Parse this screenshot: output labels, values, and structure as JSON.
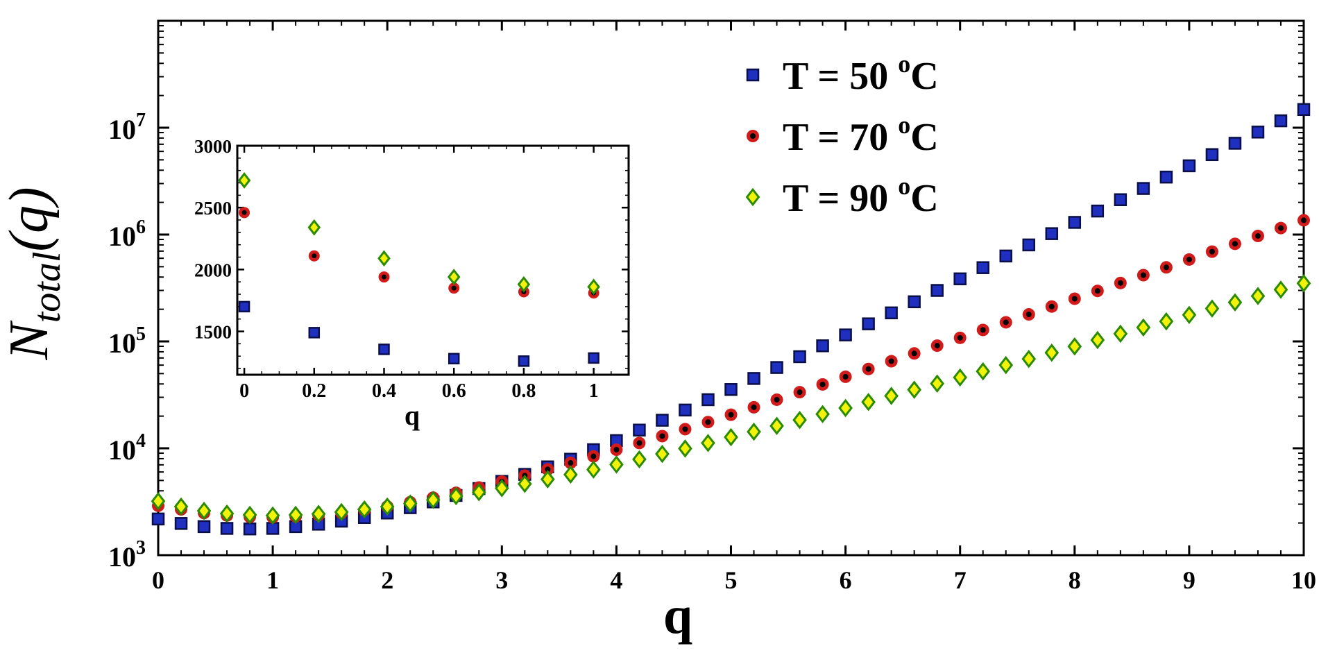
{
  "chart_data": [
    {
      "type": "scatter",
      "id": "main",
      "xlabel": "q",
      "ylabel_main": "N",
      "ylabel_sub": "total",
      "ylabel_tail": "(q)",
      "xlim": [
        0,
        10
      ],
      "ylim": [
        1000,
        100000000
      ],
      "yscale": "log",
      "xticks": [
        0,
        1,
        2,
        3,
        4,
        5,
        6,
        7,
        8,
        9,
        10
      ],
      "yticks": [
        {
          "value": 1000,
          "base": "10",
          "exp": "3"
        },
        {
          "value": 10000,
          "base": "10",
          "exp": "4"
        },
        {
          "value": 100000,
          "base": "10",
          "exp": "5"
        },
        {
          "value": 1000000,
          "base": "10",
          "exp": "6"
        },
        {
          "value": 10000000,
          "base": "10",
          "exp": "7"
        }
      ],
      "legend_position": "top-right",
      "x": [
        0,
        0.2,
        0.4,
        0.6,
        0.8,
        1.0,
        1.2,
        1.4,
        1.6,
        1.8,
        2.0,
        2.2,
        2.4,
        2.6,
        2.8,
        3.0,
        3.2,
        3.4,
        3.6,
        3.8,
        4.0,
        4.2,
        4.4,
        4.6,
        4.8,
        5.0,
        5.2,
        5.4,
        5.6,
        5.8,
        6.0,
        6.2,
        6.4,
        6.6,
        6.8,
        7.0,
        7.2,
        7.4,
        7.6,
        7.8,
        8.0,
        8.2,
        8.4,
        8.6,
        8.8,
        9.0,
        9.2,
        9.4,
        9.6,
        9.8,
        10.0
      ],
      "series": [
        {
          "name": "T = 50 °C",
          "legend_prefix": "T = 50 ",
          "legend_sup": "o",
          "legend_suffix": "C",
          "marker": "square",
          "color": "#1f2fbf",
          "edge": "#0a0f4a",
          "values": [
            2180,
            1980,
            1850,
            1780,
            1760,
            1780,
            1850,
            1950,
            2080,
            2250,
            2480,
            2780,
            3150,
            3620,
            4200,
            4900,
            5700,
            6700,
            7900,
            9700,
            11800,
            14800,
            18300,
            22800,
            28500,
            35500,
            45000,
            57000,
            72000,
            91000,
            115000,
            146000,
            185000,
            235000,
            300000,
            385000,
            490000,
            630000,
            800000,
            1020000,
            1300000,
            1660000,
            2120000,
            2700000,
            3450000,
            4400000,
            5600000,
            7150000,
            9100000,
            11600000,
            14800000
          ]
        },
        {
          "name": "T = 70 °C",
          "legend_prefix": "T = 70 ",
          "legend_sup": "o",
          "legend_suffix": "C",
          "marker": "circle",
          "color": "#d11a1a",
          "edge": "#000000",
          "values": [
            2900,
            2680,
            2480,
            2350,
            2280,
            2260,
            2300,
            2370,
            2480,
            2640,
            2850,
            3130,
            3450,
            3830,
            4300,
            4870,
            5550,
            6350,
            7300,
            8400,
            9700,
            11200,
            13000,
            15100,
            17600,
            20600,
            24200,
            28500,
            33500,
            39600,
            46700,
            55200,
            65300,
            77200,
            91300,
            108000,
            128000,
            151000,
            179000,
            212000,
            251000,
            297000,
            352000,
            417000,
            493000,
            584000,
            692000,
            819000,
            970000,
            1150000,
            1360000
          ]
        },
        {
          "name": "T = 90 °C",
          "legend_prefix": "T = 90 ",
          "legend_sup": "o",
          "legend_suffix": "C",
          "marker": "diamond",
          "color": "#f2f20a",
          "edge": "#2a8a00",
          "values": [
            3200,
            2850,
            2600,
            2450,
            2380,
            2350,
            2380,
            2430,
            2530,
            2680,
            2850,
            3040,
            3290,
            3570,
            3880,
            4230,
            4650,
            5130,
            5680,
            6320,
            7050,
            7880,
            8850,
            9950,
            11200,
            12700,
            14300,
            16200,
            18400,
            20900,
            23800,
            27100,
            30900,
            35300,
            40300,
            46000,
            52500,
            60000,
            68600,
            78400,
            89700,
            103000,
            118000,
            135000,
            154000,
            177000,
            203000,
            232000,
            266000,
            305000,
            350000
          ]
        }
      ]
    },
    {
      "type": "scatter",
      "id": "inset",
      "xlabel": "q",
      "ylabel": "",
      "xlim": [
        -0.02,
        1.1
      ],
      "ylim": [
        1150,
        3000
      ],
      "xticks": [
        {
          "value": 0,
          "label": "0"
        },
        {
          "value": 0.2,
          "label": "0.2"
        },
        {
          "value": 0.4,
          "label": "0.4"
        },
        {
          "value": 0.6,
          "label": "0.6"
        },
        {
          "value": 0.8,
          "label": "0.8"
        },
        {
          "value": 1.0,
          "label": "1"
        }
      ],
      "yticks": [
        {
          "value": 1500,
          "label": "1500"
        },
        {
          "value": 2000,
          "label": "2000"
        },
        {
          "value": 2500,
          "label": "2500"
        },
        {
          "value": 3000,
          "label": "3000"
        }
      ],
      "x": [
        0,
        0.2,
        0.4,
        0.6,
        0.8,
        1.0
      ],
      "series": [
        {
          "name": "T = 50 °C",
          "marker": "square",
          "color": "#1f2fbf",
          "edge": "#0a0f4a",
          "values": [
            1700,
            1490,
            1355,
            1280,
            1260,
            1285
          ]
        },
        {
          "name": "T = 70 °C",
          "marker": "circle",
          "color": "#d11a1a",
          "edge": "#000000",
          "values": [
            2460,
            2110,
            1940,
            1850,
            1820,
            1810
          ]
        },
        {
          "name": "T = 90 °C",
          "marker": "diamond",
          "color": "#f2f20a",
          "edge": "#2a8a00",
          "values": [
            2720,
            2340,
            2090,
            1940,
            1880,
            1860
          ]
        }
      ]
    }
  ]
}
